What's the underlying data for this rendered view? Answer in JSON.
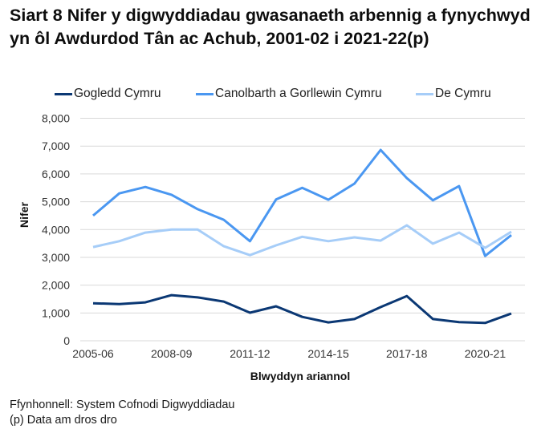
{
  "title": "Siart 8 Nifer y digwyddiadau gwasanaeth arbennig a fynychwyd yn ôl Awdurdod Tân ac Achub, 2001-02 i 2021-22(p)",
  "footer": {
    "source": "Ffynhonnell: System Cofnodi Digwyddiadau",
    "note": "(p) Data am dros dro"
  },
  "chart_data": {
    "type": "line",
    "title": "Siart 8 Nifer y digwyddiadau gwasanaeth arbennig a fynychwyd yn ôl Awdurdod Tân ac Achub, 2001-02 i 2021-22(p)",
    "xlabel": "Blwyddyn ariannol",
    "ylabel": "Nifer",
    "ylim": [
      0,
      8000
    ],
    "yticks": [
      0,
      1000,
      2000,
      3000,
      4000,
      5000,
      6000,
      7000,
      8000
    ],
    "ytick_labels": [
      "0",
      "1,000",
      "2,000",
      "3,000",
      "4,000",
      "5,000",
      "6,000",
      "7,000",
      "8,000"
    ],
    "grid": true,
    "legend_position": "top",
    "x": [
      "2005-06",
      "2006-07",
      "2007-08",
      "2008-09",
      "2009-10",
      "2010-11",
      "2011-12",
      "2012-13",
      "2013-14",
      "2014-15",
      "2015-16",
      "2016-17",
      "2017-18",
      "2018-19",
      "2019-20",
      "2020-21",
      "2021-22"
    ],
    "xtick_labels": [
      "2005-06",
      "2008-09",
      "2011-12",
      "2014-15",
      "2017-18",
      "2020-21"
    ],
    "xtick_indices": [
      0,
      3,
      6,
      9,
      12,
      15
    ],
    "series": [
      {
        "name": "Gogledd Cymru",
        "color": "#0b3874",
        "values": [
          1350,
          1320,
          1380,
          1640,
          1560,
          1410,
          1010,
          1240,
          860,
          660,
          780,
          1210,
          1610,
          780,
          670,
          640,
          980
        ]
      },
      {
        "name": "Canolbarth a Gorllewin Cymru",
        "color": "#4a97f1",
        "values": [
          4500,
          5300,
          5530,
          5250,
          4730,
          4350,
          3580,
          5080,
          5500,
          5070,
          5650,
          6860,
          5850,
          5050,
          5560,
          3050,
          3800
        ]
      },
      {
        "name": "De Cymru",
        "color": "#a6cdf8",
        "values": [
          3370,
          3580,
          3890,
          4000,
          4000,
          3400,
          3080,
          3430,
          3740,
          3580,
          3720,
          3600,
          4150,
          3490,
          3890,
          3340,
          3920
        ]
      }
    ]
  }
}
